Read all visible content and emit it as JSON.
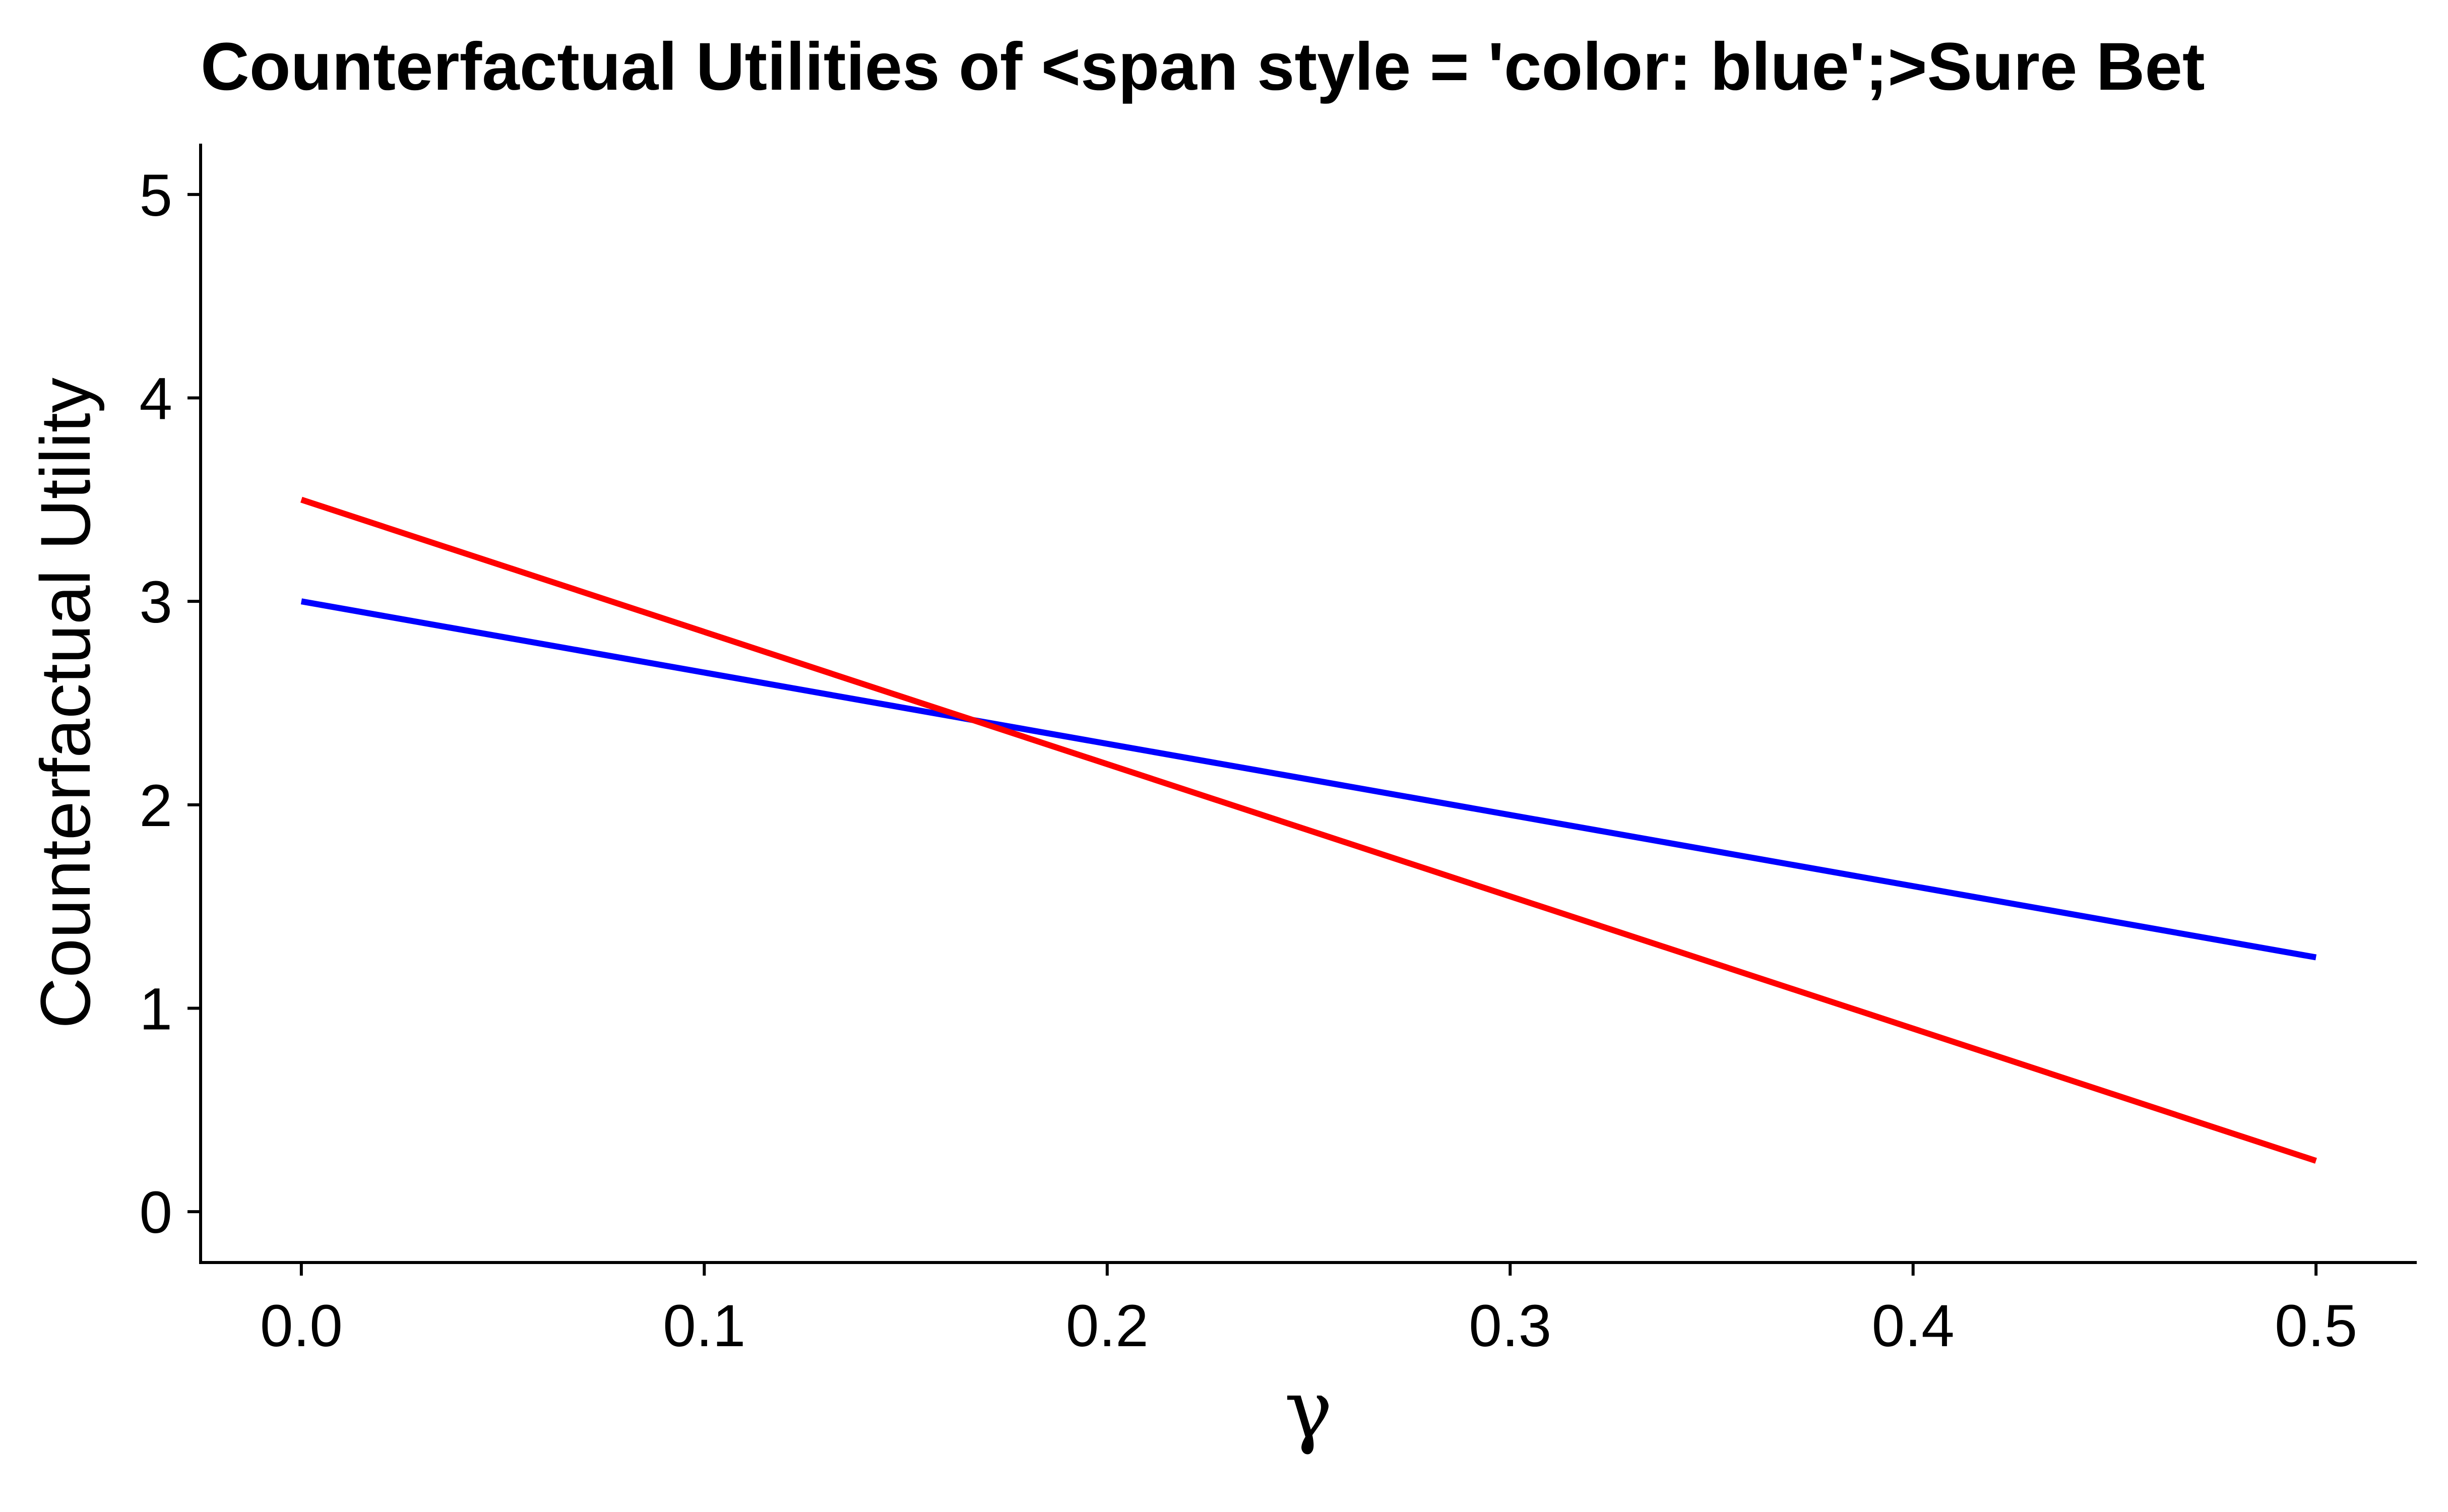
{
  "chart_data": {
    "type": "line",
    "title": "Counterfactual Utilities of <span style = 'color: blue';>Sure Bet",
    "xlabel": "γ",
    "ylabel": "Counterfactual Utility",
    "xlim": [
      -0.025,
      0.525
    ],
    "ylim": [
      -0.25,
      5.25
    ],
    "x_ticks": [
      0.0,
      0.1,
      0.2,
      0.3,
      0.4,
      0.5
    ],
    "x_tick_labels": [
      "0.0",
      "0.1",
      "0.2",
      "0.3",
      "0.4",
      "0.5"
    ],
    "y_ticks": [
      0,
      1,
      2,
      3,
      4,
      5
    ],
    "y_tick_labels": [
      "0",
      "1",
      "2",
      "3",
      "4",
      "5"
    ],
    "grid": false,
    "legend": "none",
    "series": [
      {
        "color": "#0000ff",
        "x": [
          0.0,
          0.5
        ],
        "y": [
          3.0,
          1.25
        ]
      },
      {
        "color": "#ff0000",
        "x": [
          0.0,
          0.5
        ],
        "y": [
          3.5,
          0.25
        ]
      }
    ]
  }
}
